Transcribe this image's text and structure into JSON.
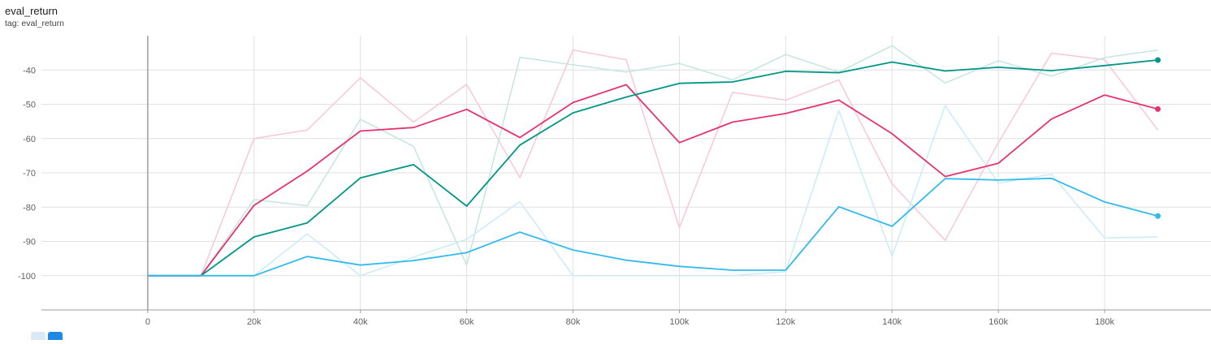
{
  "header": {
    "title": "eval_return",
    "tag": "tag: eval_return"
  },
  "chart_data": {
    "type": "line",
    "title": "eval_return",
    "xlabel": "",
    "ylabel": "",
    "xlim": [
      -20000,
      200000
    ],
    "ylim": [
      -110,
      -30
    ],
    "x_ticks": [
      0,
      20000,
      40000,
      60000,
      80000,
      100000,
      120000,
      140000,
      160000,
      180000
    ],
    "x_tick_labels": [
      "0",
      "20k",
      "40k",
      "60k",
      "80k",
      "100k",
      "120k",
      "140k",
      "160k",
      "180k"
    ],
    "y_ticks": [
      -100,
      -90,
      -80,
      -70,
      -60,
      -50,
      -40
    ],
    "y_tick_labels": [
      "-100",
      "-90",
      "-80",
      "-70",
      "-60",
      "-50",
      "-40"
    ],
    "grid": true,
    "x": [
      0,
      10000,
      20000,
      30000,
      40000,
      50000,
      60000,
      70000,
      80000,
      90000,
      100000,
      110000,
      120000,
      130000,
      140000,
      150000,
      160000,
      170000,
      180000,
      190000
    ],
    "series": [
      {
        "color": "#e6336f",
        "raw_color": "#f8c8d6",
        "raw": [
          -100,
          -100,
          -60,
          -57.5,
          -42.3,
          -55.2,
          -44.2,
          -71.4,
          -34.2,
          -37,
          -86,
          -46.5,
          -48.8,
          -42.9,
          -73.2,
          -89.7,
          -61.2,
          -35.1,
          -37,
          -57.5
        ],
        "smoothed": [
          -100,
          -100,
          -79.5,
          -69.5,
          -57.8,
          -56.8,
          -51.5,
          -59.7,
          -49.5,
          -44.3,
          -61.2,
          -55.2,
          -52.7,
          -48.8,
          -58.6,
          -71.1,
          -67.2,
          -54.3,
          -47.3,
          -51.4
        ]
      },
      {
        "color": "#009688",
        "raw_color": "#c3e6e1",
        "raw": [
          -100,
          -100,
          -77.8,
          -79.6,
          -54.4,
          -62.3,
          -96.9,
          -36.3,
          -38.5,
          -40.6,
          -38.1,
          -42.9,
          -35.5,
          -40.6,
          -32.9,
          -43.8,
          -37.3,
          -41.8,
          -36.4,
          -34.2
        ],
        "smoothed": [
          -100,
          -100,
          -88.7,
          -84.6,
          -71.5,
          -67.6,
          -79.7,
          -61.9,
          -52.5,
          -47.9,
          -43.9,
          -43.5,
          -40.4,
          -40.8,
          -37.7,
          -40.3,
          -39.2,
          -40.2,
          -38.7,
          -37.1
        ]
      },
      {
        "color": "#33bbee",
        "raw_color": "#c9ecf8",
        "raw": [
          -100,
          -100,
          -100,
          -87.8,
          -100,
          -94.6,
          -89.4,
          -78.4,
          -100,
          -100,
          -100,
          -100,
          -98.8,
          -51.8,
          -94.3,
          -50.4,
          -73,
          -70.4,
          -89,
          -88.7
        ],
        "smoothed": [
          -100,
          -100,
          -100,
          -94.4,
          -96.9,
          -95.6,
          -93.3,
          -87.3,
          -92.5,
          -95.5,
          -97.3,
          -98.4,
          -98.4,
          -79.9,
          -85.6,
          -71.7,
          -72.1,
          -71.6,
          -78.5,
          -82.6
        ]
      }
    ]
  }
}
